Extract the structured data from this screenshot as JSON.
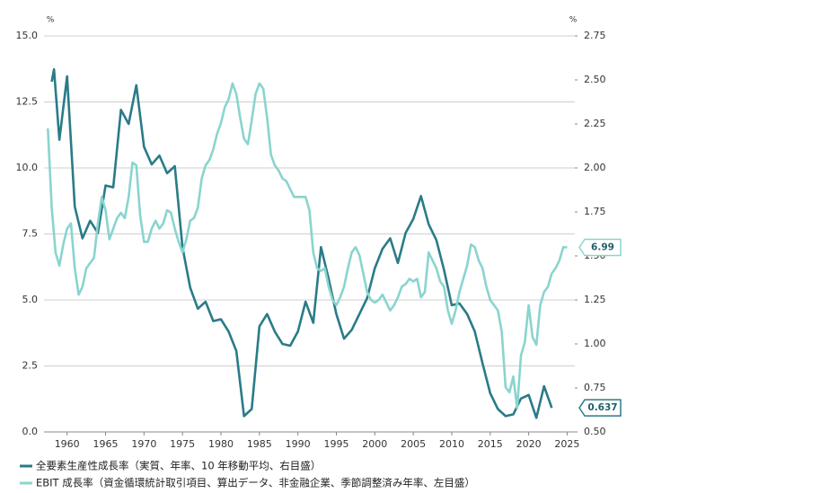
{
  "chart_data": {
    "type": "line",
    "y_unit": "%",
    "y2_unit": "%",
    "xlim": [
      1957,
      2026
    ],
    "xticks": [
      1960,
      1965,
      1970,
      1975,
      1980,
      1985,
      1990,
      1995,
      2000,
      2005,
      2010,
      2015,
      2020,
      2025
    ],
    "ylim": [
      0,
      15
    ],
    "yticks": [
      {
        "value": 0,
        "label": "0.0"
      },
      2.5,
      {
        "value": 5,
        "label": "5.0"
      },
      7.5,
      {
        "value": 10,
        "label": "10.0"
      },
      12.5,
      {
        "value": 15,
        "label": "15.0"
      }
    ],
    "y2lim": [
      0.5,
      2.75
    ],
    "y2ticks": [
      {
        "value": 0.5,
        "label": "0.50"
      },
      0.75,
      {
        "value": 1,
        "label": "1.00"
      },
      1.25,
      {
        "value": 1.5,
        "label": "1.50"
      },
      1.75,
      {
        "value": 2,
        "label": "2.00"
      },
      2.25,
      {
        "value": 2.5,
        "label": "2.50"
      },
      2.75
    ],
    "grid": true,
    "legend": "bottom-left",
    "series": [
      {
        "name": "全要素生産性成長率（実質、年率、10 年移動平均、右目盛）",
        "color": "#2a7b88",
        "axis": "y2",
        "x": [
          1958,
          1958.3,
          1959,
          1960,
          1961,
          1962,
          1963,
          1964,
          1965,
          1966,
          1967,
          1968,
          1969,
          1970,
          1971,
          1972,
          1973,
          1974,
          1975,
          1976,
          1977,
          1978,
          1979,
          1980,
          1981,
          1982,
          1983,
          1984,
          1985,
          1986,
          1987,
          1988,
          1989,
          1990,
          1991,
          1992,
          1993,
          1994,
          1995,
          1996,
          1997,
          1998,
          1999,
          2000,
          2001,
          2002,
          2003,
          2004,
          2005,
          2006,
          2007,
          2008,
          2009,
          2010,
          2011,
          2012,
          2013,
          2014,
          2015,
          2016,
          2017,
          2018,
          2019,
          2020,
          2021,
          2022,
          2023
        ],
        "values": [
          2.49,
          2.56,
          2.16,
          2.52,
          1.78,
          1.6,
          1.7,
          1.63,
          1.9,
          1.89,
          2.33,
          2.25,
          2.47,
          2.12,
          2.02,
          2.07,
          1.97,
          2.01,
          1.55,
          1.32,
          1.2,
          1.24,
          1.13,
          1.14,
          1.07,
          0.96,
          0.59,
          0.63,
          1.1,
          1.17,
          1.07,
          1.0,
          0.99,
          1.07,
          1.24,
          1.12,
          1.55,
          1.37,
          1.17,
          1.03,
          1.08,
          1.17,
          1.26,
          1.43,
          1.54,
          1.6,
          1.46,
          1.63,
          1.71,
          1.84,
          1.68,
          1.59,
          1.42,
          1.22,
          1.23,
          1.17,
          1.07,
          0.89,
          0.72,
          0.63,
          0.59,
          0.6,
          0.69,
          0.71,
          0.58,
          0.76,
          0.637
        ]
      },
      {
        "name": "EBIT 成長率（資金循環統計取引項目、算出データ、非金融企業、季節調整済み年率、左目盛）",
        "color": "#8ad4cf",
        "axis": "y",
        "x": [
          1957.5,
          1958,
          1958.5,
          1959,
          1959.5,
          1960,
          1960.5,
          1961,
          1961.5,
          1962,
          1962.5,
          1963,
          1963.5,
          1964,
          1964.5,
          1965,
          1965.5,
          1966,
          1966.5,
          1967,
          1967.5,
          1968,
          1968.5,
          1969,
          1969.5,
          1970,
          1970.5,
          1971,
          1971.5,
          1972,
          1972.5,
          1973,
          1973.5,
          1974,
          1974.5,
          1975,
          1975.5,
          1976,
          1976.5,
          1977,
          1977.5,
          1978,
          1978.5,
          1979,
          1979.5,
          1980,
          1980.5,
          1981,
          1981.5,
          1982,
          1982.5,
          1983,
          1983.5,
          1984,
          1984.5,
          1985,
          1985.5,
          1986,
          1986.5,
          1987,
          1987.5,
          1988,
          1988.5,
          1989,
          1989.5,
          1990,
          1990.5,
          1991,
          1991.5,
          1992,
          1992.5,
          1993,
          1993.5,
          1994,
          1994.5,
          1995,
          1995.5,
          1996,
          1996.5,
          1997,
          1997.5,
          1998,
          1998.5,
          1999,
          1999.5,
          2000,
          2000.5,
          2001,
          2001.5,
          2002,
          2002.5,
          2003,
          2003.5,
          2004,
          2004.5,
          2005,
          2005.5,
          2006,
          2006.5,
          2007,
          2007.5,
          2008,
          2008.5,
          2009,
          2009.5,
          2010,
          2010.5,
          2011,
          2011.5,
          2012,
          2012.5,
          2013,
          2013.5,
          2014,
          2014.5,
          2015,
          2015.5,
          2016,
          2016.5,
          2017,
          2017.5,
          2018,
          2018.5,
          2019,
          2019.5,
          2020,
          2020.5,
          2021,
          2021.5,
          2022,
          2022.5,
          2023,
          2023.5,
          2024,
          2024.5,
          2025
        ],
        "values": [
          11.5,
          8.5,
          6.8,
          6.3,
          7.1,
          7.7,
          7.9,
          6.2,
          5.2,
          5.5,
          6.2,
          6.4,
          6.6,
          7.9,
          8.9,
          8.4,
          7.3,
          7.7,
          8.1,
          8.3,
          8.1,
          8.9,
          10.2,
          10.1,
          8.2,
          7.2,
          7.2,
          7.7,
          8.0,
          7.7,
          7.9,
          8.4,
          8.3,
          7.7,
          7.2,
          6.8,
          7.3,
          8.0,
          8.1,
          8.5,
          9.6,
          10.1,
          10.3,
          10.7,
          11.3,
          11.7,
          12.3,
          12.6,
          13.2,
          12.8,
          11.9,
          11.1,
          10.9,
          11.8,
          12.8,
          13.2,
          13.0,
          11.9,
          10.5,
          10.1,
          9.9,
          9.6,
          9.5,
          9.2,
          8.9,
          8.9,
          8.9,
          8.9,
          8.4,
          6.8,
          6.2,
          6.1,
          6.2,
          5.5,
          5.0,
          4.8,
          5.1,
          5.5,
          6.2,
          6.8,
          7.0,
          6.7,
          6.0,
          5.3,
          5.0,
          4.9,
          5.0,
          5.2,
          4.9,
          4.6,
          4.8,
          5.1,
          5.5,
          5.6,
          5.8,
          5.7,
          5.8,
          5.1,
          5.3,
          6.8,
          6.5,
          6.2,
          5.7,
          5.5,
          4.6,
          4.1,
          4.6,
          5.3,
          5.8,
          6.3,
          7.1,
          7.0,
          6.5,
          6.2,
          5.5,
          5.0,
          4.8,
          4.6,
          3.8,
          1.7,
          1.5,
          2.1,
          0.9,
          2.9,
          3.4,
          4.8,
          3.6,
          3.3,
          4.8,
          5.3,
          5.5,
          6.0,
          6.2,
          6.5,
          7.0,
          6.99
        ]
      }
    ]
  }
}
